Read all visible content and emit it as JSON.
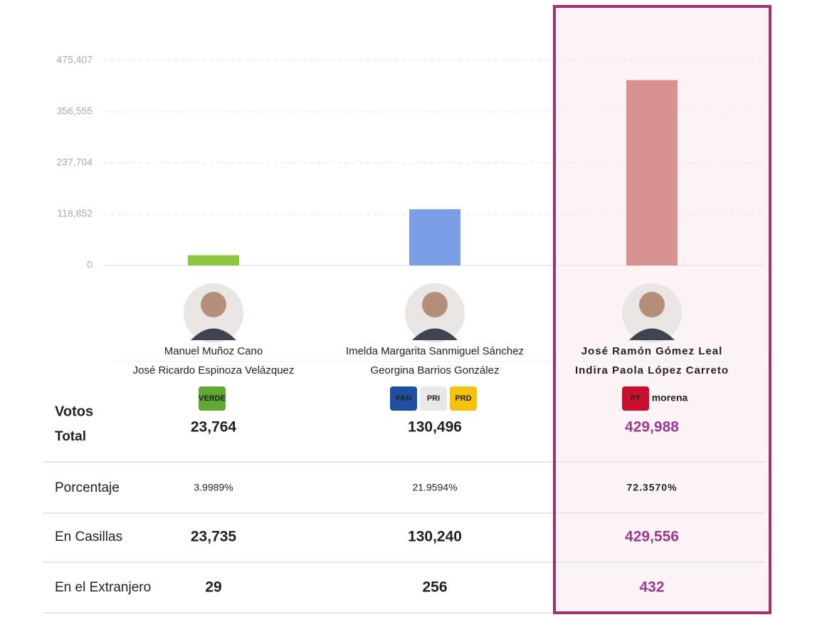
{
  "chart_data": {
    "type": "bar",
    "categories": [
      "Manuel Muñoz Cano",
      "Imelda Margarita Sanmiguel Sánchez",
      "José Ramón Gómez Leal"
    ],
    "values": [
      23764,
      130496,
      429988
    ],
    "value_labels": [
      "23,764",
      "130,496",
      "429,988"
    ],
    "colors": [
      "#8dc63f",
      "#7a9fe6",
      "#d9938e"
    ],
    "ylim": [
      0,
      475407
    ],
    "yticks": [
      0,
      {
        "value": 118852,
        "label": "118,852"
      },
      {
        "value": 237704,
        "label": "237,704"
      },
      {
        "value": 356555,
        "label": "356,555"
      },
      {
        "value": 475407,
        "label": "475,407"
      }
    ],
    "grid": true
  },
  "running_mates": [
    "José Ricardo Espinoza Velázquez",
    "Georgina Barrios González",
    "Indira Paola López Carreto"
  ],
  "parties": [
    [
      "VERDE"
    ],
    [
      "PAN",
      "PRI",
      "PRD"
    ],
    [
      "PT",
      "morena"
    ]
  ],
  "total_label": [
    "Votos",
    "Total"
  ],
  "table": {
    "rows": [
      {
        "label": "Porcentaje",
        "cells": [
          "3.9989%",
          "21.9594%",
          "72.3570%"
        ]
      },
      {
        "label": "En Casillas",
        "cells": [
          "23,735",
          "130,240",
          "429,556"
        ]
      },
      {
        "label": "En el Extranjero",
        "cells": [
          "29",
          "256",
          "432"
        ]
      }
    ]
  }
}
